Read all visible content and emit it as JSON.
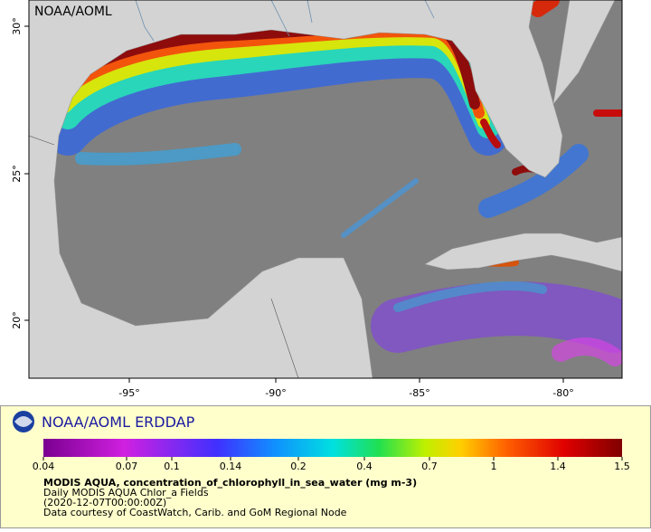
{
  "map": {
    "label": "NOAA/AOML",
    "x_ticks": [
      "-95°",
      "-90°",
      "-85°",
      "-80°"
    ],
    "y_ticks": [
      "30°",
      "25°",
      "20°"
    ]
  },
  "legend": {
    "title": "NOAA/AOML ERDDAP",
    "colorbar_ticks": [
      "0.04",
      "0.07",
      "0.1",
      "0.14",
      "0.2",
      "0.4",
      "0.7",
      "1",
      "1.4",
      "1.5"
    ],
    "lines": [
      "MODIS AQUA, concentration_of_chlorophyll_in_sea_water (mg m-3)",
      "Daily MODIS AQUA Chlor_a Fields",
      "(2020-12-07T00:00:00Z)",
      "Data courtesy of CoastWatch, Carib. and GoM Regional Node"
    ]
  }
}
